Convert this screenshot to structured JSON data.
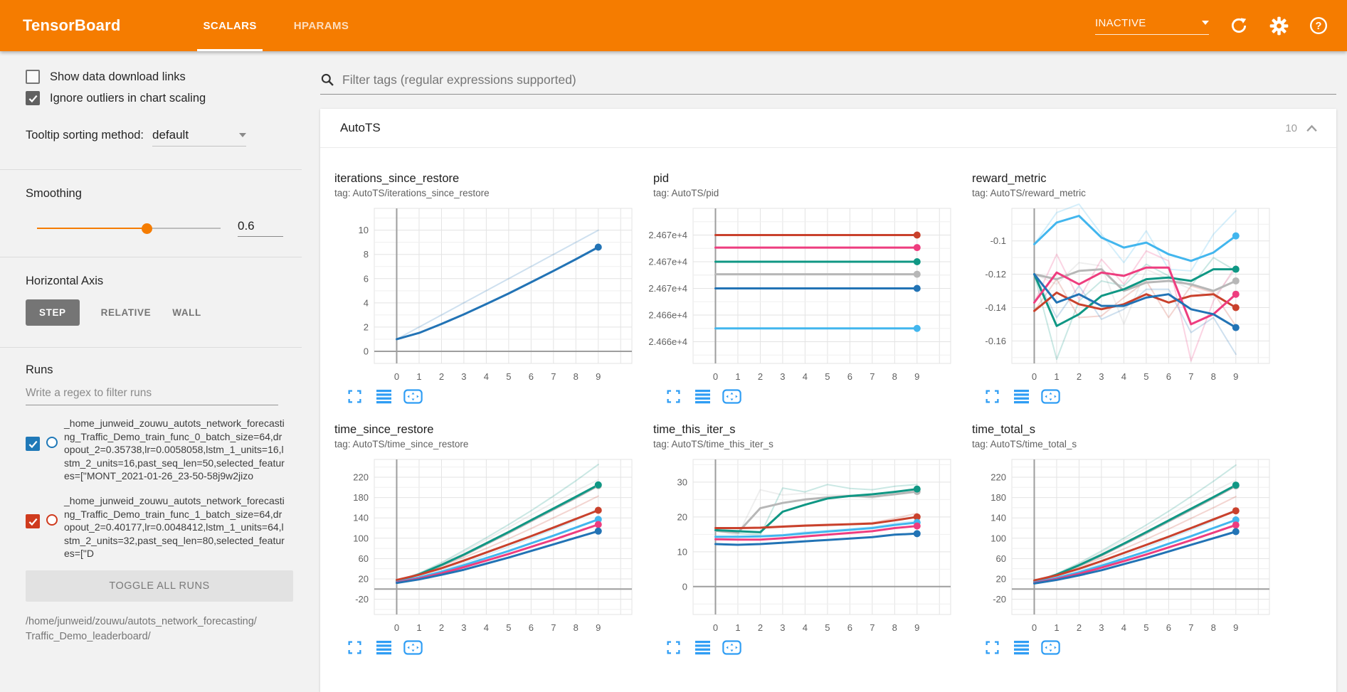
{
  "header": {
    "title": "TensorBoard",
    "tabs": [
      {
        "label": "SCALARS"
      },
      {
        "label": "HPARAMS"
      }
    ],
    "active_tab": "SCALARS",
    "status_dropdown": "INACTIVE"
  },
  "sidebar": {
    "checkboxes": [
      {
        "label": "Show data download links",
        "checked": false
      },
      {
        "label": "Ignore outliers in chart scaling",
        "checked": true
      }
    ],
    "tooltip_sorting": {
      "label": "Tooltip sorting method:",
      "value": "default"
    },
    "smoothing": {
      "label": "Smoothing",
      "value": "0.6",
      "fraction": 0.6
    },
    "horizontal_axis": {
      "label": "Horizontal Axis",
      "options": [
        "STEP",
        "RELATIVE",
        "WALL"
      ],
      "selected": "STEP"
    },
    "runs": {
      "label": "Runs",
      "filter_placeholder": "Write a regex to filter runs",
      "items": [
        {
          "label": "_home_junweid_zouwu_autots_network_forecasting_Traffic_Demo_train_func_0_batch_size=64,dropout_2=0.35738,lr=0.0058058,lstm_1_units=16,lstm_2_units=16,past_seq_len=50,selected_features=[\"MONT_2021-01-26_23-50-58j9w2jizo",
          "checked": true,
          "color": "#2079b8"
        },
        {
          "label": "_home_junweid_zouwu_autots_network_forecasting_Traffic_Demo_train_func_1_batch_size=64,dropout_2=0.40177,lr=0.0048412,lstm_1_units=64,lstm_2_units=32,past_seq_len=80,selected_features=[\"D",
          "checked": true,
          "color": "#cf3b1e"
        }
      ],
      "toggle_all_label": "TOGGLE ALL RUNS",
      "logdir": "/home/junweid/zouwu/autots_network_forecasting/Traffic_Demo_leaderboard/"
    }
  },
  "main": {
    "filter_placeholder": "Filter tags (regular expressions supported)",
    "section": {
      "title": "AutoTS",
      "count": "10"
    }
  },
  "palette": {
    "red": "#c9412c",
    "pink": "#ee3d7f",
    "teal": "#0f9784",
    "gray": "#b7b7b7",
    "blue": "#2273b5",
    "cyan": "#42b6ee"
  },
  "chart_data": [
    {
      "type": "line",
      "title": "iterations_since_restore",
      "tag": "tag: AutoTS/iterations_since_restore",
      "x": [
        0,
        1,
        2,
        3,
        4,
        5,
        6,
        7,
        8,
        9
      ],
      "ylim": [
        -1.0,
        11.8
      ],
      "zero_line": true,
      "yticks": [
        {
          "v": 0,
          "label": "0"
        },
        {
          "v": 2,
          "label": "2"
        },
        {
          "v": 4,
          "label": "4"
        },
        {
          "v": 6,
          "label": "6"
        },
        {
          "v": 8,
          "label": "8"
        },
        {
          "v": 10,
          "label": "10"
        }
      ],
      "series": [
        {
          "color": "blue",
          "raw": [
            1,
            2,
            3,
            4,
            5,
            6,
            7,
            8,
            9,
            10
          ],
          "values": [
            1,
            1.52,
            2.26,
            3.05,
            3.9,
            4.78,
            5.7,
            6.64,
            7.6,
            8.6
          ],
          "dot": true
        }
      ]
    },
    {
      "type": "line",
      "title": "pid",
      "tag": "tag: AutoTS/pid",
      "x": [
        0,
        1,
        2,
        3,
        4,
        5,
        6,
        7,
        8,
        9
      ],
      "ylim": [
        1.1,
        10.4
      ],
      "zero_line": false,
      "yticks": [
        {
          "v": 8.8,
          "label": "2.467e+4"
        },
        {
          "v": 7.2,
          "label": "2.467e+4"
        },
        {
          "v": 5.6,
          "label": "2.467e+4"
        },
        {
          "v": 4.0,
          "label": "2.466e+4"
        },
        {
          "v": 2.4,
          "label": "2.466e+4"
        }
      ],
      "series": [
        {
          "color": "red",
          "values": [
            8.8,
            8.8,
            8.8,
            8.8,
            8.8,
            8.8,
            8.8,
            8.8,
            8.8,
            8.8
          ],
          "dot": true
        },
        {
          "color": "pink",
          "values": [
            8.05,
            8.05,
            8.05,
            8.05,
            8.05,
            8.05,
            8.05,
            8.05,
            8.05,
            8.05
          ],
          "dot": true
        },
        {
          "color": "teal",
          "values": [
            7.2,
            7.2,
            7.2,
            7.2,
            7.2,
            7.2,
            7.2,
            7.2,
            7.2,
            7.2
          ],
          "dot": true
        },
        {
          "color": "gray",
          "values": [
            6.45,
            6.45,
            6.45,
            6.45,
            6.45,
            6.45,
            6.45,
            6.45,
            6.45,
            6.45
          ],
          "dot": true
        },
        {
          "color": "blue",
          "values": [
            5.6,
            5.6,
            5.6,
            5.6,
            5.6,
            5.6,
            5.6,
            5.6,
            5.6,
            5.6
          ],
          "dot": true
        },
        {
          "color": "cyan",
          "values": [
            3.2,
            3.2,
            3.2,
            3.2,
            3.2,
            3.2,
            3.2,
            3.2,
            3.2,
            3.2
          ],
          "dot": true
        }
      ]
    },
    {
      "type": "line",
      "title": "reward_metric",
      "tag": "tag: AutoTS/reward_metric",
      "x": [
        0,
        1,
        2,
        3,
        4,
        5,
        6,
        7,
        8,
        9
      ],
      "ylim": [
        -0.1735,
        -0.0805
      ],
      "zero_line": false,
      "yticks": [
        {
          "v": -0.1,
          "label": "-0.1"
        },
        {
          "v": -0.12,
          "label": "-0.12"
        },
        {
          "v": -0.14,
          "label": "-0.14"
        },
        {
          "v": -0.16,
          "label": "-0.16"
        }
      ],
      "series": [
        {
          "color": "gray",
          "raw": [
            -0.12,
            -0.126,
            -0.113,
            -0.115,
            -0.15,
            -0.117,
            -0.123,
            -0.129,
            -0.134,
            -0.117
          ],
          "values": [
            -0.12,
            -0.123,
            -0.118,
            -0.117,
            -0.13,
            -0.125,
            -0.124,
            -0.126,
            -0.13,
            -0.124
          ],
          "dot": true
        },
        {
          "color": "teal",
          "raw": [
            -0.12,
            -0.171,
            -0.136,
            -0.124,
            -0.127,
            -0.114,
            -0.121,
            -0.127,
            -0.11,
            -0.118
          ],
          "values": [
            -0.12,
            -0.151,
            -0.144,
            -0.133,
            -0.129,
            -0.123,
            -0.122,
            -0.124,
            -0.117,
            -0.117
          ],
          "dot": true
        },
        {
          "color": "red",
          "raw": [
            -0.142,
            -0.123,
            -0.146,
            -0.145,
            -0.134,
            -0.124,
            -0.146,
            -0.127,
            -0.131,
            -0.151
          ],
          "values": [
            -0.142,
            -0.131,
            -0.138,
            -0.141,
            -0.138,
            -0.132,
            -0.137,
            -0.133,
            -0.132,
            -0.14
          ],
          "dot": true
        },
        {
          "color": "pink",
          "raw": [
            -0.137,
            -0.108,
            -0.135,
            -0.111,
            -0.126,
            -0.106,
            -0.112,
            -0.172,
            -0.136,
            -0.115
          ],
          "values": [
            -0.137,
            -0.119,
            -0.126,
            -0.119,
            -0.121,
            -0.116,
            -0.116,
            -0.15,
            -0.144,
            -0.132
          ],
          "dot": true
        },
        {
          "color": "blue",
          "raw": [
            -0.12,
            -0.146,
            -0.127,
            -0.147,
            -0.141,
            -0.129,
            -0.129,
            -0.155,
            -0.146,
            -0.168
          ],
          "values": [
            -0.12,
            -0.137,
            -0.132,
            -0.139,
            -0.139,
            -0.134,
            -0.132,
            -0.141,
            -0.144,
            -0.152
          ],
          "dot": true
        },
        {
          "color": "cyan",
          "raw": [
            -0.102,
            -0.083,
            -0.078,
            -0.096,
            -0.113,
            -0.094,
            -0.117,
            -0.118,
            -0.096,
            -0.082
          ],
          "values": [
            -0.102,
            -0.089,
            -0.085,
            -0.098,
            -0.104,
            -0.101,
            -0.108,
            -0.112,
            -0.107,
            -0.097
          ],
          "dot": true
        }
      ]
    },
    {
      "type": "line",
      "title": "time_since_restore",
      "tag": "tag: AutoTS/time_since_restore",
      "x": [
        0,
        1,
        2,
        3,
        4,
        5,
        6,
        7,
        8,
        9
      ],
      "ylim": [
        -50,
        255
      ],
      "zero_line": true,
      "yticks": [
        {
          "v": -20,
          "label": "-20"
        },
        {
          "v": 20,
          "label": "20"
        },
        {
          "v": 60,
          "label": "60"
        },
        {
          "v": 100,
          "label": "100"
        },
        {
          "v": 140,
          "label": "140"
        },
        {
          "v": 180,
          "label": "180"
        },
        {
          "v": 220,
          "label": "220"
        }
      ],
      "series": [
        {
          "color": "gray",
          "raw": [
            15,
            30,
            50,
            73,
            97,
            121,
            146,
            170,
            193,
            215
          ],
          "values": [
            15,
            28.5,
            46.5,
            66.5,
            88.5,
            110.5,
            133.5,
            156.5,
            179.5,
            203.5
          ],
          "dot": true
        },
        {
          "color": "teal",
          "raw": [
            15,
            31,
            52,
            76,
            101,
            127,
            154,
            183,
            213,
            245
          ],
          "values": [
            15,
            29,
            47.5,
            68,
            90,
            112.5,
            135.5,
            158.5,
            181.5,
            205
          ],
          "dot": true
        },
        {
          "color": "red",
          "raw": [
            18,
            30,
            45,
            62,
            80,
            99,
            119,
            140,
            161,
            183
          ],
          "values": [
            18,
            28,
            41,
            56,
            72,
            88,
            104,
            121,
            138,
            155
          ],
          "dot": true
        },
        {
          "color": "cyan",
          "raw": [
            14,
            24,
            37,
            51,
            67,
            83,
            100,
            117,
            135,
            158
          ],
          "values": [
            14,
            23,
            34,
            47,
            61,
            75,
            90,
            105,
            121,
            137
          ],
          "dot": true
        },
        {
          "color": "pink",
          "values": [
            13,
            21,
            31,
            43,
            56,
            69,
            83,
            97,
            112,
            127
          ],
          "dot": true
        },
        {
          "color": "blue",
          "values": [
            12,
            19,
            28,
            38,
            50,
            62,
            75,
            88,
            101,
            114
          ],
          "dot": true
        }
      ]
    },
    {
      "type": "line",
      "title": "time_this_iter_s",
      "tag": "tag: AutoTS/time_this_iter_s",
      "x": [
        0,
        1,
        2,
        3,
        4,
        5,
        6,
        7,
        8,
        9
      ],
      "ylim": [
        -8,
        36.5
      ],
      "zero_line": true,
      "yticks": [
        {
          "v": 0,
          "label": "0"
        },
        {
          "v": 10,
          "label": "10"
        },
        {
          "v": 20,
          "label": "20"
        },
        {
          "v": 30,
          "label": "30"
        }
      ],
      "series": [
        {
          "color": "gray",
          "raw": [
            16,
            14.8,
            27.8,
            26.3,
            26.8,
            26.3,
            26.3,
            25.3,
            26.8,
            27.8
          ],
          "values": [
            16,
            15.5,
            22.5,
            24,
            25,
            25.6,
            26,
            25.8,
            26.5,
            27.3
          ],
          "dot": true
        },
        {
          "color": "teal",
          "raw": [
            16.2,
            15.3,
            14.8,
            28.3,
            27.2,
            29.3,
            28.2,
            27.8,
            28.8,
            29.3
          ],
          "values": [
            16.2,
            15.9,
            15.6,
            21.5,
            23.5,
            25.3,
            26,
            26.5,
            27.2,
            28
          ],
          "dot": true
        },
        {
          "color": "red",
          "raw": [
            16.8,
            16.8,
            17,
            17.4,
            17.7,
            17.9,
            18,
            18.4,
            19.6,
            21
          ],
          "values": [
            16.8,
            16.8,
            16.9,
            17.2,
            17.5,
            17.7,
            17.9,
            18.1,
            19,
            20
          ],
          "dot": true
        },
        {
          "color": "cyan",
          "raw": [
            14.3,
            14.2,
            14.5,
            14.9,
            15.7,
            16.1,
            16.6,
            17.1,
            18.2,
            18.9
          ],
          "values": [
            14.3,
            14.3,
            14.4,
            14.7,
            15.3,
            15.8,
            16.3,
            16.8,
            17.7,
            18.4
          ],
          "dot": true
        },
        {
          "color": "pink",
          "values": [
            13.6,
            13.5,
            13.5,
            13.9,
            14.4,
            14.9,
            15.4,
            15.9,
            16.8,
            17.4
          ],
          "dot": true
        },
        {
          "color": "blue",
          "values": [
            12.2,
            12,
            12.2,
            12.6,
            13,
            13.4,
            13.8,
            14.2,
            14.9,
            15.2
          ],
          "dot": true
        }
      ]
    },
    {
      "type": "line",
      "title": "time_total_s",
      "tag": "tag: AutoTS/time_total_s",
      "x": [
        0,
        1,
        2,
        3,
        4,
        5,
        6,
        7,
        8,
        9
      ],
      "ylim": [
        -50,
        255
      ],
      "zero_line": true,
      "yticks": [
        {
          "v": -20,
          "label": "-20"
        },
        {
          "v": 20,
          "label": "20"
        },
        {
          "v": 60,
          "label": "60"
        },
        {
          "v": 100,
          "label": "100"
        },
        {
          "v": 140,
          "label": "140"
        },
        {
          "v": 180,
          "label": "180"
        },
        {
          "v": 220,
          "label": "220"
        }
      ],
      "series": [
        {
          "color": "gray",
          "raw": [
            14,
            29,
            49,
            72,
            96,
            120,
            145,
            169,
            192,
            214
          ],
          "values": [
            14,
            28,
            46,
            66,
            88,
            110,
            133,
            156,
            179,
            203
          ],
          "dot": true
        },
        {
          "color": "teal",
          "raw": [
            14,
            30,
            51,
            75,
            100,
            126,
            153,
            182,
            212,
            244
          ],
          "values": [
            14,
            28.5,
            47,
            67.5,
            89.5,
            112,
            135,
            158,
            181,
            204.5
          ],
          "dot": true
        },
        {
          "color": "red",
          "raw": [
            17,
            29,
            44,
            61,
            79,
            98,
            118,
            139,
            160,
            182
          ],
          "values": [
            17,
            27,
            40,
            55,
            71,
            87,
            103,
            120,
            137,
            154
          ],
          "dot": true
        },
        {
          "color": "cyan",
          "raw": [
            13,
            23,
            36,
            50,
            66,
            82,
            99,
            116,
            134,
            157
          ],
          "values": [
            13,
            22,
            33,
            46,
            60,
            74,
            89,
            104,
            120,
            136
          ],
          "dot": true
        },
        {
          "color": "pink",
          "values": [
            12,
            20,
            30,
            42,
            55,
            68,
            82,
            96,
            111,
            126
          ],
          "dot": true
        },
        {
          "color": "blue",
          "values": [
            11,
            18,
            27,
            37,
            49,
            61,
            74,
            87,
            100,
            113
          ],
          "dot": true
        }
      ]
    }
  ]
}
